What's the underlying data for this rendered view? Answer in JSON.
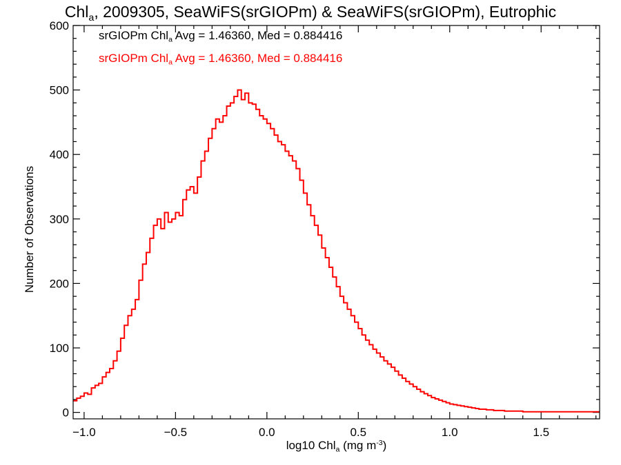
{
  "chart_data": {
    "type": "histogram",
    "title": "Chl",
    "title_sub": "a",
    "title_rest": ", 2009305, SeaWiFS(srGIOPm) & SeaWiFS(srGIOPm), Eutrophic",
    "xlabel": "log10 Chl",
    "xlabel_sub": "a",
    "xlabel_unit": " (mg m",
    "xlabel_sup": "-3",
    "xlabel_end": ")",
    "ylabel": "Number of Observations",
    "xlim": [
      -1.06,
      1.82
    ],
    "ylim": [
      -10,
      600
    ],
    "xticks": [
      -1.0,
      -0.5,
      0.0,
      0.5,
      1.0,
      1.5
    ],
    "xtick_labels": [
      "−1.0",
      "−0.5",
      "0.0",
      "0.5",
      "1.0",
      "1.5"
    ],
    "yticks": [
      0,
      100,
      200,
      300,
      400,
      500,
      600
    ],
    "ytick_labels": [
      "0",
      "100",
      "200",
      "300",
      "400",
      "500",
      "600"
    ],
    "legend": [
      {
        "prefix": "srGIOPm Chl",
        "sub": "a",
        "text": " Avg = 1.46360, Med = 0.884416",
        "color": "#000000"
      },
      {
        "prefix": "srGIOPm Chl",
        "sub": "a",
        "text": " Avg = 1.46360, Med = 0.884416",
        "color": "#ff0000"
      }
    ],
    "series": [
      {
        "color": "#ff0000",
        "x": [
          -1.06,
          -1.04,
          -1.02,
          -1.0,
          -0.98,
          -0.96,
          -0.94,
          -0.92,
          -0.9,
          -0.88,
          -0.86,
          -0.84,
          -0.82,
          -0.8,
          -0.78,
          -0.76,
          -0.74,
          -0.72,
          -0.7,
          -0.68,
          -0.66,
          -0.64,
          -0.62,
          -0.6,
          -0.58,
          -0.56,
          -0.54,
          -0.52,
          -0.5,
          -0.48,
          -0.46,
          -0.44,
          -0.42,
          -0.4,
          -0.38,
          -0.36,
          -0.34,
          -0.32,
          -0.3,
          -0.28,
          -0.26,
          -0.24,
          -0.22,
          -0.2,
          -0.18,
          -0.16,
          -0.14,
          -0.12,
          -0.1,
          -0.08,
          -0.06,
          -0.04,
          -0.02,
          0.0,
          0.02,
          0.04,
          0.06,
          0.08,
          0.1,
          0.12,
          0.14,
          0.16,
          0.18,
          0.2,
          0.22,
          0.24,
          0.26,
          0.28,
          0.3,
          0.32,
          0.34,
          0.36,
          0.38,
          0.4,
          0.42,
          0.44,
          0.46,
          0.48,
          0.5,
          0.52,
          0.54,
          0.56,
          0.58,
          0.6,
          0.62,
          0.64,
          0.66,
          0.68,
          0.7,
          0.72,
          0.74,
          0.76,
          0.78,
          0.8,
          0.82,
          0.84,
          0.86,
          0.88,
          0.9,
          0.92,
          0.94,
          0.96,
          0.98,
          1.0,
          1.02,
          1.04,
          1.06,
          1.08,
          1.1,
          1.12,
          1.14,
          1.16,
          1.18,
          1.2,
          1.22,
          1.24,
          1.26,
          1.28,
          1.3,
          1.32,
          1.34,
          1.36,
          1.38,
          1.4,
          1.42,
          1.44,
          1.46,
          1.48,
          1.5,
          1.52,
          1.54,
          1.56,
          1.58,
          1.6,
          1.62,
          1.64,
          1.66,
          1.68,
          1.7,
          1.72,
          1.74,
          1.76,
          1.78,
          1.8
        ],
        "y": [
          18,
          22,
          25,
          30,
          28,
          38,
          42,
          45,
          55,
          62,
          68,
          80,
          95,
          115,
          135,
          150,
          160,
          175,
          205,
          230,
          248,
          270,
          290,
          300,
          285,
          310,
          295,
          300,
          310,
          305,
          330,
          345,
          350,
          340,
          365,
          390,
          405,
          425,
          440,
          455,
          450,
          460,
          475,
          480,
          490,
          500,
          485,
          495,
          480,
          478,
          470,
          460,
          455,
          448,
          440,
          430,
          420,
          415,
          405,
          398,
          390,
          378,
          360,
          340,
          322,
          305,
          290,
          275,
          255,
          240,
          225,
          210,
          195,
          180,
          170,
          160,
          150,
          140,
          130,
          120,
          112,
          105,
          98,
          92,
          86,
          80,
          75,
          70,
          64,
          58,
          53,
          48,
          44,
          40,
          36,
          32,
          29,
          26,
          23,
          21,
          19,
          17,
          15,
          13,
          12,
          11,
          10,
          9,
          8,
          7,
          6,
          5,
          5,
          4,
          4,
          3,
          3,
          3,
          2,
          2,
          2,
          2,
          2,
          1,
          1,
          1,
          1,
          1,
          1,
          1,
          1,
          1,
          1,
          1,
          1,
          1,
          1,
          1,
          1,
          1,
          1,
          1,
          1,
          1
        ]
      }
    ]
  }
}
